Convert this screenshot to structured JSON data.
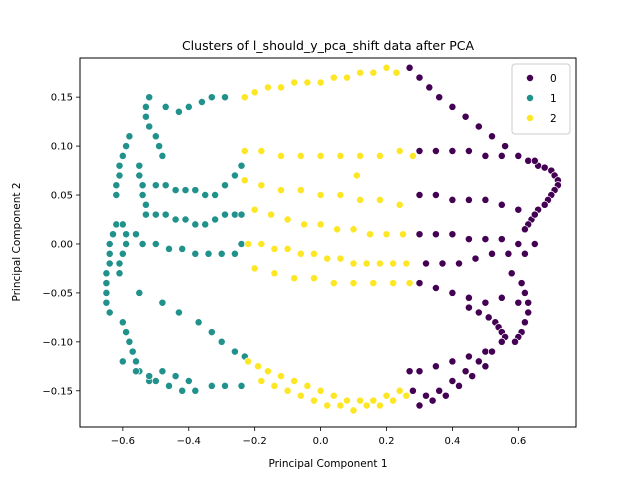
{
  "chart_data": {
    "type": "scatter",
    "title": "Clusters of l_should_y_pca_shift data after PCA",
    "xlabel": "Principal Component 1",
    "ylabel": "Principal Component 2",
    "xlim": [
      -0.73,
      0.775
    ],
    "ylim": [
      -0.187,
      0.19
    ],
    "xticks": [
      -0.6,
      -0.4,
      -0.2,
      0.0,
      0.2,
      0.4,
      0.6
    ],
    "xtick_labels": [
      "−0.6",
      "−0.4",
      "−0.2",
      "0.0",
      "0.2",
      "0.4",
      "0.6"
    ],
    "yticks": [
      -0.15,
      -0.1,
      -0.05,
      0.0,
      0.05,
      0.1,
      0.15
    ],
    "ytick_labels": [
      "−0.15",
      "−0.10",
      "−0.05",
      "0.00",
      "0.05",
      "0.10",
      "0.15"
    ],
    "grid": false,
    "legend": {
      "placement": "top-right"
    },
    "series": [
      {
        "name": "0",
        "color": "#440154",
        "points": [
          [
            0.27,
            0.18
          ],
          [
            0.3,
            0.17
          ],
          [
            0.33,
            0.16
          ],
          [
            0.36,
            0.15
          ],
          [
            0.4,
            0.14
          ],
          [
            0.44,
            0.13
          ],
          [
            0.48,
            0.12
          ],
          [
            0.52,
            0.11
          ],
          [
            0.56,
            0.1
          ],
          [
            0.6,
            0.09
          ],
          [
            0.63,
            0.085
          ],
          [
            0.66,
            0.08
          ],
          [
            0.68,
            0.078
          ],
          [
            0.7,
            0.075
          ],
          [
            0.71,
            0.07
          ],
          [
            0.72,
            0.065
          ],
          [
            0.72,
            0.06
          ],
          [
            0.71,
            0.055
          ],
          [
            0.7,
            0.05
          ],
          [
            0.69,
            0.045
          ],
          [
            0.68,
            0.04
          ],
          [
            0.66,
            0.035
          ],
          [
            0.65,
            0.03
          ],
          [
            0.64,
            0.025
          ],
          [
            0.63,
            0.02
          ],
          [
            0.62,
            0.015
          ],
          [
            0.3,
            0.095
          ],
          [
            0.35,
            0.095
          ],
          [
            0.4,
            0.095
          ],
          [
            0.45,
            0.095
          ],
          [
            0.5,
            0.09
          ],
          [
            0.55,
            0.09
          ],
          [
            0.6,
            0.09
          ],
          [
            0.65,
            0.085
          ],
          [
            0.3,
            0.05
          ],
          [
            0.35,
            0.05
          ],
          [
            0.4,
            0.045
          ],
          [
            0.45,
            0.045
          ],
          [
            0.5,
            0.045
          ],
          [
            0.55,
            0.04
          ],
          [
            0.6,
            0.035
          ],
          [
            0.65,
            0.03
          ],
          [
            0.3,
            0.01
          ],
          [
            0.35,
            0.01
          ],
          [
            0.4,
            0.01
          ],
          [
            0.45,
            0.005
          ],
          [
            0.5,
            0.005
          ],
          [
            0.55,
            0.005
          ],
          [
            0.6,
            0.0
          ],
          [
            0.65,
            0.0
          ],
          [
            0.32,
            -0.02
          ],
          [
            0.37,
            -0.02
          ],
          [
            0.42,
            -0.02
          ],
          [
            0.47,
            -0.015
          ],
          [
            0.52,
            -0.01
          ],
          [
            0.57,
            -0.01
          ],
          [
            0.62,
            -0.01
          ],
          [
            0.3,
            -0.04
          ],
          [
            0.35,
            -0.045
          ],
          [
            0.4,
            -0.05
          ],
          [
            0.45,
            -0.055
          ],
          [
            0.5,
            -0.06
          ],
          [
            0.55,
            -0.055
          ],
          [
            0.6,
            -0.06
          ],
          [
            0.45,
            -0.065
          ],
          [
            0.48,
            -0.07
          ],
          [
            0.51,
            -0.075
          ],
          [
            0.53,
            -0.08
          ],
          [
            0.54,
            -0.085
          ],
          [
            0.55,
            -0.09
          ],
          [
            0.56,
            -0.095
          ],
          [
            0.55,
            -0.1
          ],
          [
            0.58,
            -0.03
          ],
          [
            0.61,
            -0.04
          ],
          [
            0.62,
            -0.05
          ],
          [
            0.63,
            -0.06
          ],
          [
            0.63,
            -0.07
          ],
          [
            0.62,
            -0.08
          ],
          [
            0.61,
            -0.09
          ],
          [
            0.6,
            -0.095
          ],
          [
            0.59,
            -0.1
          ],
          [
            0.27,
            -0.13
          ],
          [
            0.3,
            -0.13
          ],
          [
            0.35,
            -0.125
          ],
          [
            0.4,
            -0.12
          ],
          [
            0.45,
            -0.115
          ],
          [
            0.5,
            -0.11
          ],
          [
            0.55,
            -0.1
          ],
          [
            0.28,
            -0.15
          ],
          [
            0.32,
            -0.155
          ],
          [
            0.36,
            -0.15
          ],
          [
            0.4,
            -0.14
          ],
          [
            0.44,
            -0.13
          ],
          [
            0.48,
            -0.12
          ],
          [
            0.52,
            -0.11
          ],
          [
            0.3,
            -0.165
          ],
          [
            0.34,
            -0.16
          ],
          [
            0.38,
            -0.155
          ],
          [
            0.42,
            -0.145
          ],
          [
            0.46,
            -0.135
          ],
          [
            0.5,
            -0.125
          ]
        ]
      },
      {
        "name": "1",
        "color": "#21918c",
        "points": [
          [
            -0.52,
            0.15
          ],
          [
            -0.53,
            0.14
          ],
          [
            -0.53,
            0.13
          ],
          [
            -0.52,
            0.12
          ],
          [
            -0.5,
            0.11
          ],
          [
            -0.49,
            0.1
          ],
          [
            -0.48,
            0.09
          ],
          [
            -0.47,
            0.14
          ],
          [
            -0.43,
            0.135
          ],
          [
            -0.4,
            0.14
          ],
          [
            -0.36,
            0.145
          ],
          [
            -0.33,
            0.15
          ],
          [
            -0.29,
            0.15
          ],
          [
            -0.58,
            0.11
          ],
          [
            -0.59,
            0.1
          ],
          [
            -0.6,
            0.09
          ],
          [
            -0.61,
            0.08
          ],
          [
            -0.61,
            0.07
          ],
          [
            -0.62,
            0.06
          ],
          [
            -0.62,
            0.05
          ],
          [
            -0.55,
            0.08
          ],
          [
            -0.55,
            0.07
          ],
          [
            -0.54,
            0.06
          ],
          [
            -0.54,
            0.05
          ],
          [
            -0.53,
            0.04
          ],
          [
            -0.53,
            0.03
          ],
          [
            -0.5,
            0.06
          ],
          [
            -0.47,
            0.06
          ],
          [
            -0.44,
            0.055
          ],
          [
            -0.41,
            0.055
          ],
          [
            -0.38,
            0.055
          ],
          [
            -0.35,
            0.05
          ],
          [
            -0.32,
            0.05
          ],
          [
            -0.29,
            0.06
          ],
          [
            -0.26,
            0.07
          ],
          [
            -0.24,
            0.08
          ],
          [
            -0.5,
            0.03
          ],
          [
            -0.47,
            0.03
          ],
          [
            -0.44,
            0.025
          ],
          [
            -0.41,
            0.025
          ],
          [
            -0.38,
            0.02
          ],
          [
            -0.35,
            0.02
          ],
          [
            -0.32,
            0.025
          ],
          [
            -0.29,
            0.03
          ],
          [
            -0.26,
            0.03
          ],
          [
            -0.24,
            0.03
          ],
          [
            -0.62,
            0.02
          ],
          [
            -0.63,
            0.01
          ],
          [
            -0.64,
            0.0
          ],
          [
            -0.64,
            -0.01
          ],
          [
            -0.64,
            -0.02
          ],
          [
            -0.65,
            -0.03
          ],
          [
            -0.65,
            -0.04
          ],
          [
            -0.65,
            -0.05
          ],
          [
            -0.65,
            -0.06
          ],
          [
            -0.64,
            -0.07
          ],
          [
            -0.6,
            0.02
          ],
          [
            -0.59,
            0.01
          ],
          [
            -0.59,
            0.0
          ],
          [
            -0.6,
            -0.01
          ],
          [
            -0.61,
            -0.02
          ],
          [
            -0.61,
            -0.03
          ],
          [
            -0.56,
            0.01
          ],
          [
            -0.54,
            0.0
          ],
          [
            -0.5,
            0.0
          ],
          [
            -0.46,
            -0.005
          ],
          [
            -0.42,
            -0.005
          ],
          [
            -0.38,
            -0.01
          ],
          [
            -0.34,
            -0.01
          ],
          [
            -0.3,
            -0.01
          ],
          [
            -0.26,
            -0.01
          ],
          [
            -0.24,
            0.0
          ],
          [
            -0.6,
            -0.08
          ],
          [
            -0.59,
            -0.09
          ],
          [
            -0.58,
            -0.1
          ],
          [
            -0.57,
            -0.11
          ],
          [
            -0.56,
            -0.12
          ],
          [
            -0.55,
            -0.13
          ],
          [
            -0.52,
            -0.14
          ],
          [
            -0.5,
            -0.14
          ],
          [
            -0.46,
            -0.145
          ],
          [
            -0.42,
            -0.15
          ],
          [
            -0.38,
            -0.15
          ],
          [
            -0.33,
            -0.145
          ],
          [
            -0.29,
            -0.145
          ],
          [
            -0.24,
            -0.145
          ],
          [
            -0.55,
            -0.05
          ],
          [
            -0.48,
            -0.06
          ],
          [
            -0.43,
            -0.07
          ],
          [
            -0.37,
            -0.08
          ],
          [
            -0.33,
            -0.09
          ],
          [
            -0.3,
            -0.1
          ],
          [
            -0.26,
            -0.11
          ],
          [
            -0.23,
            -0.115
          ],
          [
            -0.6,
            -0.12
          ],
          [
            -0.56,
            -0.13
          ],
          [
            -0.52,
            -0.135
          ],
          [
            -0.48,
            -0.13
          ],
          [
            -0.44,
            -0.135
          ],
          [
            -0.4,
            -0.14
          ]
        ]
      },
      {
        "name": "2",
        "color": "#fde725",
        "points": [
          [
            -0.23,
            0.15
          ],
          [
            -0.2,
            0.155
          ],
          [
            -0.16,
            0.16
          ],
          [
            -0.12,
            0.16
          ],
          [
            -0.08,
            0.165
          ],
          [
            -0.04,
            0.165
          ],
          [
            0.0,
            0.165
          ],
          [
            0.04,
            0.17
          ],
          [
            0.08,
            0.17
          ],
          [
            0.12,
            0.175
          ],
          [
            0.16,
            0.175
          ],
          [
            0.2,
            0.18
          ],
          [
            0.23,
            0.175
          ],
          [
            -0.23,
            0.095
          ],
          [
            -0.18,
            0.095
          ],
          [
            -0.12,
            0.09
          ],
          [
            -0.06,
            0.09
          ],
          [
            0.0,
            0.09
          ],
          [
            0.06,
            0.09
          ],
          [
            0.12,
            0.09
          ],
          [
            0.18,
            0.09
          ],
          [
            0.24,
            0.095
          ],
          [
            0.28,
            0.09
          ],
          [
            0.11,
            0.07
          ],
          [
            -0.23,
            0.065
          ],
          [
            -0.18,
            0.06
          ],
          [
            -0.12,
            0.055
          ],
          [
            -0.06,
            0.055
          ],
          [
            0.0,
            0.05
          ],
          [
            0.06,
            0.05
          ],
          [
            0.12,
            0.045
          ],
          [
            0.18,
            0.045
          ],
          [
            0.24,
            0.04
          ],
          [
            -0.2,
            0.035
          ],
          [
            -0.15,
            0.03
          ],
          [
            -0.1,
            0.025
          ],
          [
            -0.05,
            0.02
          ],
          [
            0.0,
            0.02
          ],
          [
            0.05,
            0.015
          ],
          [
            0.1,
            0.015
          ],
          [
            0.15,
            0.01
          ],
          [
            0.2,
            0.01
          ],
          [
            0.25,
            0.01
          ],
          [
            -0.22,
            0.0
          ],
          [
            -0.18,
            0.0
          ],
          [
            -0.14,
            -0.005
          ],
          [
            -0.1,
            -0.005
          ],
          [
            -0.06,
            -0.01
          ],
          [
            -0.02,
            -0.01
          ],
          [
            0.02,
            -0.015
          ],
          [
            0.06,
            -0.015
          ],
          [
            0.1,
            -0.02
          ],
          [
            0.14,
            -0.02
          ],
          [
            0.18,
            -0.02
          ],
          [
            0.22,
            -0.02
          ],
          [
            0.26,
            -0.02
          ],
          [
            -0.2,
            -0.025
          ],
          [
            -0.14,
            -0.03
          ],
          [
            -0.08,
            -0.035
          ],
          [
            -0.02,
            -0.035
          ],
          [
            0.04,
            -0.04
          ],
          [
            0.1,
            -0.04
          ],
          [
            0.16,
            -0.04
          ],
          [
            0.22,
            -0.04
          ],
          [
            0.27,
            -0.04
          ],
          [
            -0.22,
            -0.12
          ],
          [
            -0.19,
            -0.125
          ],
          [
            -0.16,
            -0.13
          ],
          [
            -0.12,
            -0.135
          ],
          [
            -0.08,
            -0.14
          ],
          [
            -0.04,
            -0.145
          ],
          [
            0.0,
            -0.15
          ],
          [
            0.04,
            -0.155
          ],
          [
            0.08,
            -0.16
          ],
          [
            0.12,
            -0.16
          ],
          [
            0.16,
            -0.16
          ],
          [
            0.2,
            -0.155
          ],
          [
            0.24,
            -0.15
          ],
          [
            -0.18,
            -0.14
          ],
          [
            -0.14,
            -0.145
          ],
          [
            -0.1,
            -0.15
          ],
          [
            -0.06,
            -0.155
          ],
          [
            -0.02,
            -0.16
          ],
          [
            0.02,
            -0.165
          ],
          [
            0.06,
            -0.165
          ],
          [
            0.1,
            -0.17
          ],
          [
            0.14,
            -0.165
          ],
          [
            0.18,
            -0.165
          ],
          [
            0.22,
            -0.16
          ],
          [
            0.26,
            -0.155
          ]
        ]
      }
    ]
  }
}
